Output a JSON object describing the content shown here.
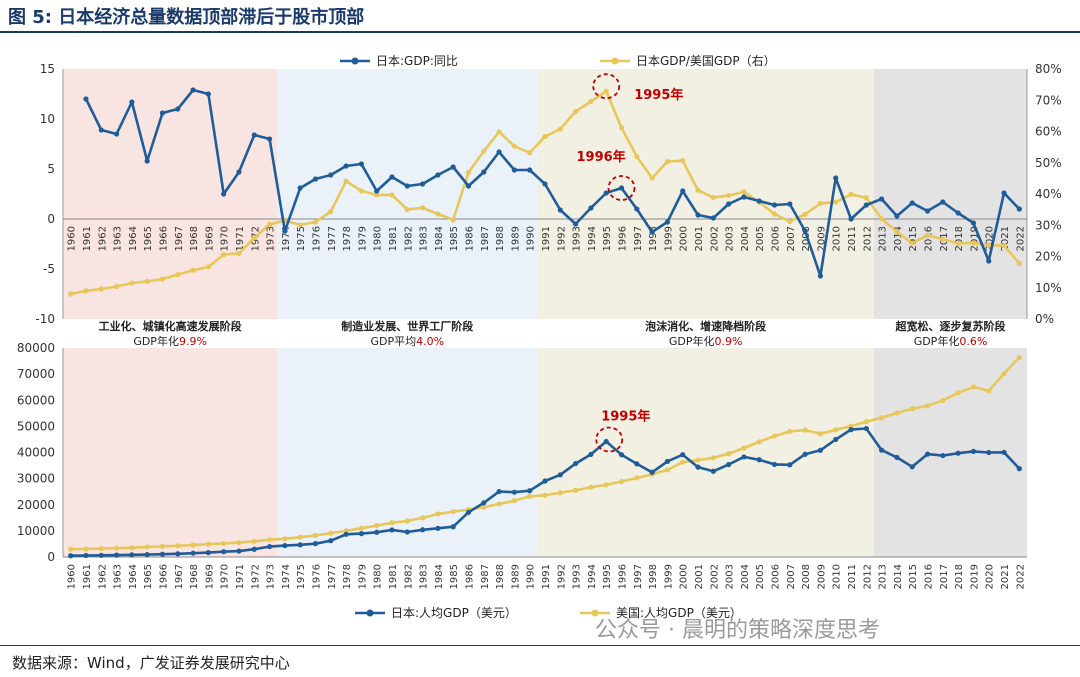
{
  "figure": {
    "title": "图 5: 日本经济总量数据顶部滞后于股市顶部",
    "source": "数据来源：Wind，广发证券发展研究中心",
    "watermark": "公众号 · 晨明的策略深度思考"
  },
  "colors": {
    "blue": "#1f5c99",
    "yellow": "#e8c75a",
    "red": "#c00000",
    "stage1_bg": "#f8e5e2",
    "stage2_bg": "#eaf1f9",
    "stage3_bg": "#f2f0e3",
    "stage4_bg": "#e3e3e3"
  },
  "stages": [
    {
      "from": "1960",
      "to": "1973",
      "title": "工业化、城镇化高速发展阶段",
      "rate_prefix": "GDP年化",
      "rate": "9.9%"
    },
    {
      "from": "1974",
      "to": "1990",
      "title": "制造业发展、世界工厂阶段",
      "rate_prefix": "GDP平均",
      "rate": "4.0%"
    },
    {
      "from": "1991",
      "to": "2012",
      "title": "泡沫消化、增速降档阶段",
      "rate_prefix": "GDP年化",
      "rate": "0.9%"
    },
    {
      "from": "2013",
      "to": "2022",
      "title": "超宽松、逐步复苏阶段",
      "rate_prefix": "GDP年化",
      "rate": "0.6%"
    }
  ],
  "chart_data": [
    {
      "type": "line",
      "categories": [
        "1960",
        "1961",
        "1962",
        "1963",
        "1964",
        "1965",
        "1966",
        "1967",
        "1968",
        "1969",
        "1970",
        "1971",
        "1972",
        "1973",
        "1974",
        "1975",
        "1976",
        "1977",
        "1978",
        "1979",
        "1980",
        "1981",
        "1982",
        "1983",
        "1984",
        "1985",
        "1986",
        "1987",
        "1988",
        "1989",
        "1990",
        "1991",
        "1992",
        "1993",
        "1994",
        "1995",
        "1996",
        "1997",
        "1998",
        "1999",
        "2000",
        "2001",
        "2002",
        "2003",
        "2004",
        "2005",
        "2006",
        "2007",
        "2008",
        "2009",
        "2010",
        "2011",
        "2012",
        "2013",
        "2014",
        "2015",
        "2016",
        "2017",
        "2018",
        "2019",
        "2020",
        "2021",
        "2022"
      ],
      "ylim_left": [
        -10,
        15
      ],
      "yticks_left": [
        -10,
        -5,
        0,
        5,
        10,
        15
      ],
      "ylim_right": [
        0,
        80
      ],
      "yticks_right": [
        "0%",
        "10%",
        "20%",
        "30%",
        "40%",
        "50%",
        "60%",
        "70%",
        "80%"
      ],
      "legend_position": "top",
      "series": [
        {
          "name": "日本:GDP:同比",
          "axis": "left",
          "color": "#1f5c99",
          "values": [
            null,
            12.0,
            8.9,
            8.5,
            11.7,
            5.8,
            10.6,
            11.0,
            12.9,
            12.5,
            2.5,
            4.7,
            8.4,
            8.0,
            -1.2,
            3.1,
            4.0,
            4.4,
            5.3,
            5.5,
            2.8,
            4.2,
            3.3,
            3.5,
            4.4,
            5.2,
            3.3,
            4.7,
            6.7,
            4.9,
            4.9,
            3.5,
            0.9,
            -0.5,
            1.1,
            2.6,
            3.1,
            1.0,
            -1.3,
            -0.3,
            2.8,
            0.4,
            0.1,
            1.5,
            2.2,
            1.8,
            1.4,
            1.5,
            -1.2,
            -5.7,
            4.1,
            0.0,
            1.4,
            2.0,
            0.3,
            1.6,
            0.8,
            1.7,
            0.6,
            -0.4,
            -4.2,
            2.6,
            1.0
          ]
        },
        {
          "name": "日本GDP/美国GDP（右）",
          "axis": "right",
          "color": "#e8c75a",
          "values": [
            8.0,
            9.0,
            9.6,
            10.4,
            11.5,
            12.0,
            12.8,
            14.2,
            15.6,
            16.7,
            20.6,
            21.0,
            26.0,
            30.3,
            31.5,
            30.1,
            31.0,
            34.4,
            44.1,
            41.0,
            39.7,
            39.7,
            35.0,
            35.6,
            33.6,
            31.7,
            46.9,
            53.7,
            59.9,
            55.3,
            53.2,
            58.4,
            60.8,
            66.4,
            69.6,
            72.9,
            61.2,
            52.0,
            45.1,
            50.4,
            50.7,
            41.2,
            38.9,
            39.5,
            40.7,
            37.4,
            33.6,
            31.2,
            33.5,
            37.0,
            37.4,
            39.9,
            38.8,
            32.1,
            27.9,
            24.3,
            26.8,
            25.5,
            24.2,
            24.4,
            23.6,
            23.5,
            17.8
          ]
        }
      ],
      "annotations": [
        {
          "label": "1995年",
          "x": "1995"
        },
        {
          "label": "1996年",
          "x": "1996"
        }
      ]
    },
    {
      "type": "line",
      "categories": [
        "1960",
        "1961",
        "1962",
        "1963",
        "1964",
        "1965",
        "1966",
        "1967",
        "1968",
        "1969",
        "1970",
        "1971",
        "1972",
        "1973",
        "1974",
        "1975",
        "1976",
        "1977",
        "1978",
        "1979",
        "1980",
        "1981",
        "1982",
        "1983",
        "1984",
        "1985",
        "1986",
        "1987",
        "1988",
        "1989",
        "1990",
        "1991",
        "1992",
        "1993",
        "1994",
        "1995",
        "1996",
        "1997",
        "1998",
        "1999",
        "2000",
        "2001",
        "2002",
        "2003",
        "2004",
        "2005",
        "2006",
        "2007",
        "2008",
        "2009",
        "2010",
        "2011",
        "2012",
        "2013",
        "2014",
        "2015",
        "2016",
        "2017",
        "2018",
        "2019",
        "2020",
        "2021",
        "2022"
      ],
      "ylim": [
        0,
        80000
      ],
      "yticks": [
        0,
        10000,
        20000,
        30000,
        40000,
        50000,
        60000,
        70000,
        80000
      ],
      "legend_position": "bottom",
      "series": [
        {
          "name": "日本:人均GDP（美元）",
          "color": "#1f5c99",
          "values": [
            480,
            560,
            640,
            720,
            840,
            920,
            1060,
            1230,
            1450,
            1670,
            2040,
            2270,
            2970,
            3990,
            4360,
            4660,
            5110,
            6240,
            8690,
            8950,
            9460,
            10360,
            9580,
            10420,
            10980,
            11580,
            17110,
            20750,
            25050,
            24810,
            25360,
            29080,
            31460,
            35770,
            39270,
            44200,
            39150,
            35640,
            32440,
            36610,
            39170,
            34410,
            32820,
            35390,
            38300,
            37220,
            35430,
            35280,
            39340,
            40850,
            44970,
            48760,
            49170,
            40900,
            38110,
            34520,
            39380,
            38830,
            39730,
            40420,
            39990,
            40080,
            33820
          ]
        },
        {
          "name": "美国:人均GDP（美元）",
          "color": "#e8c75a",
          "values": [
            3010,
            3060,
            3240,
            3360,
            3560,
            3800,
            4110,
            4290,
            4600,
            4920,
            5150,
            5520,
            6030,
            6600,
            7000,
            7570,
            8270,
            9100,
            10000,
            11030,
            12000,
            13100,
            13830,
            14980,
            16470,
            17350,
            18180,
            19060,
            20300,
            21580,
            23200,
            23660,
            24600,
            25550,
            26690,
            27620,
            28900,
            30250,
            31670,
            33330,
            36300,
            37100,
            37970,
            39490,
            41720,
            44110,
            46300,
            48050,
            48570,
            47190,
            48650,
            50070,
            51780,
            53290,
            55120,
            56760,
            57870,
            59910,
            62820,
            65120,
            63530,
            70220,
            76400
          ]
        }
      ],
      "annotations": [
        {
          "label": "1995年",
          "x": "1995"
        }
      ]
    }
  ]
}
